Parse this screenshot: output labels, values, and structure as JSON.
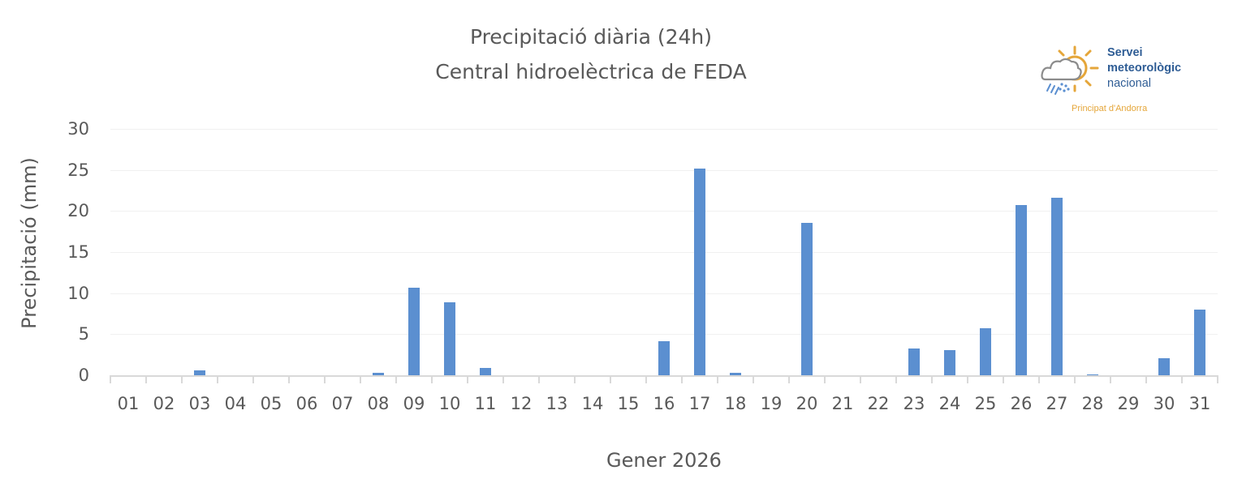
{
  "header": {
    "title_line1": "Precipitació diària (24h)",
    "title_line2": "Central hidroelèctrica de FEDA"
  },
  "logo": {
    "name_line1": "Servei",
    "name_line2": "meteorològic",
    "name_line3": "nacional",
    "subtitle": "Principat d'Andorra",
    "icon": "sun-cloud-rain-icon",
    "colors": {
      "name": "#2f5d95",
      "subtitle": "#e5a63a",
      "sun": "#e5a63a",
      "cloud": "#8c8c8c",
      "rain": "#5b8fd0"
    }
  },
  "axes": {
    "ylabel": "Precipitació (mm)",
    "xlabel": "Gener 2026",
    "yticks": [
      "30",
      "25",
      "20",
      "15",
      "10",
      "5",
      "0"
    ]
  },
  "colors": {
    "bar": "#5b8fd0",
    "text": "#595959",
    "grid": "#f0f0f0",
    "axis": "#d9d9d9"
  },
  "chart_data": {
    "type": "bar",
    "title": "Precipitació diària (24h) — Central hidroelèctrica de FEDA",
    "xlabel": "Gener 2026",
    "ylabel": "Precipitació (mm)",
    "ylim": [
      0,
      30
    ],
    "yticks": [
      0,
      5,
      10,
      15,
      20,
      25,
      30
    ],
    "grid": true,
    "legend": null,
    "categories": [
      "01",
      "02",
      "03",
      "04",
      "05",
      "06",
      "07",
      "08",
      "09",
      "10",
      "11",
      "12",
      "13",
      "14",
      "15",
      "16",
      "17",
      "18",
      "19",
      "20",
      "21",
      "22",
      "23",
      "24",
      "25",
      "26",
      "27",
      "28",
      "29",
      "30",
      "31"
    ],
    "values": [
      0,
      0,
      0.6,
      0,
      0,
      0,
      0,
      0.3,
      10.7,
      8.9,
      0.9,
      0,
      0,
      0,
      0,
      4.1,
      25.2,
      0.3,
      0,
      18.6,
      0,
      0,
      3.3,
      3.1,
      5.7,
      20.7,
      21.6,
      0.1,
      0,
      2.1,
      8.0
    ]
  }
}
